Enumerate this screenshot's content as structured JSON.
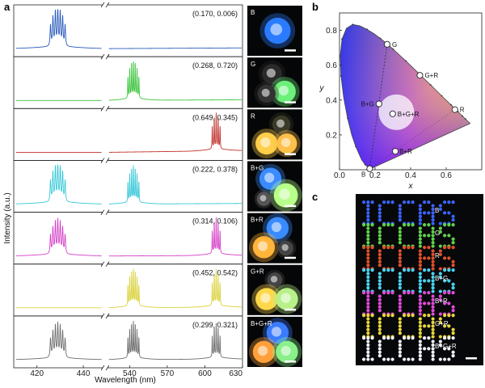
{
  "panels": {
    "a": "a",
    "b": "b",
    "c": "c"
  },
  "chart_data": [
    {
      "type": "line",
      "panel": "a",
      "ylabel": "Intensity (a.u.)",
      "xlabel": "Wavelength (nm)",
      "x_ticks_left": [
        "420",
        "440"
      ],
      "x_ticks_right": [
        "540",
        "570",
        "600",
        "630"
      ],
      "x_break": true,
      "spectra": [
        {
          "label": "B",
          "coords": "(0.170, 0.006)",
          "color": "#2a5bbd",
          "peaks": [
            {
              "band": "blue",
              "amp": 0.95
            }
          ]
        },
        {
          "label": "G",
          "coords": "(0.268, 0.720)",
          "color": "#3cc43c",
          "peaks": [
            {
              "band": "green",
              "amp": 0.95
            }
          ]
        },
        {
          "label": "R",
          "coords": "(0.649, 0.345)",
          "color": "#c0302a",
          "peaks": [
            {
              "band": "red",
              "amp": 0.9
            }
          ]
        },
        {
          "label": "B+G",
          "coords": "(0.222, 0.378)",
          "color": "#35c8d8",
          "peaks": [
            {
              "band": "blue",
              "amp": 0.95
            },
            {
              "band": "green",
              "amp": 0.9
            }
          ]
        },
        {
          "label": "B+R",
          "coords": "(0.314, 0.106)",
          "color": "#d43fc8",
          "peaks": [
            {
              "band": "blue",
              "amp": 0.85
            },
            {
              "band": "red",
              "amp": 0.9
            }
          ]
        },
        {
          "label": "G+R",
          "coords": "(0.452, 0.542)",
          "color": "#d9d23a",
          "peaks": [
            {
              "band": "green",
              "amp": 0.92
            },
            {
              "band": "red",
              "amp": 0.9
            }
          ]
        },
        {
          "label": "B+G+R",
          "coords": "(0.299, 0.321)",
          "color": "#6e6e6e",
          "peaks": [
            {
              "band": "blue",
              "amp": 0.85
            },
            {
              "band": "green",
              "amp": 0.9
            },
            {
              "band": "red",
              "amp": 0.85
            }
          ]
        }
      ]
    },
    {
      "type": "scatter",
      "panel": "b",
      "xlabel": "x",
      "ylabel": "y",
      "xlim": [
        0.0,
        0.8
      ],
      "ylim": [
        0.0,
        0.9
      ],
      "x_ticks": [
        "0.0",
        "0.2",
        "0.4",
        "0.6"
      ],
      "y_ticks": [
        "0.2",
        "0.4",
        "0.6",
        "0.8"
      ],
      "points": [
        {
          "label": "G",
          "x": 0.268,
          "y": 0.72
        },
        {
          "label": "G+R",
          "x": 0.452,
          "y": 0.542
        },
        {
          "label": "R",
          "x": 0.649,
          "y": 0.345
        },
        {
          "label": "B+G",
          "x": 0.222,
          "y": 0.378
        },
        {
          "label": "B+G+R",
          "x": 0.299,
          "y": 0.321
        },
        {
          "label": "B+R",
          "x": 0.314,
          "y": 0.106
        },
        {
          "label": "B",
          "x": 0.17,
          "y": 0.006
        }
      ]
    }
  ],
  "panel_c": {
    "sign_text": "ICCAS",
    "rows": [
      {
        "label": "B",
        "color": "#3a64ff"
      },
      {
        "label": "G",
        "color": "#5fd24a"
      },
      {
        "label": "R",
        "color": "#e0502a"
      },
      {
        "label": "B+G",
        "color": "#4ad2f0"
      },
      {
        "label": "B+R",
        "color": "#e04ad8"
      },
      {
        "label": "G+R",
        "color": "#e8d63a"
      },
      {
        "label": "B+G+R",
        "color": "#f2f2ff"
      }
    ]
  }
}
